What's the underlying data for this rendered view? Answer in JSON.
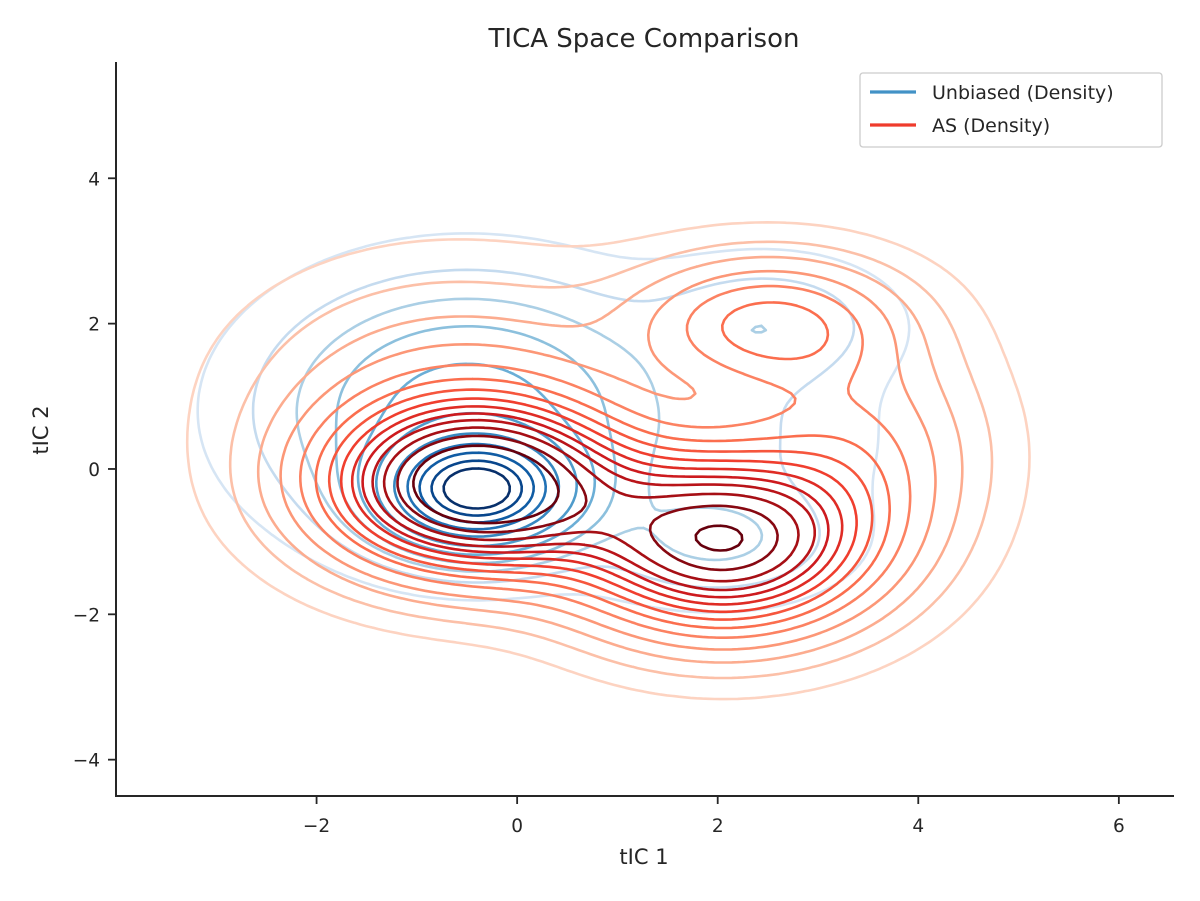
{
  "chart_data": {
    "type": "contour",
    "title": "TICA Space Comparison",
    "xlabel": "tIC 1",
    "ylabel": "tIC 2",
    "xlim": [
      -4.0,
      6.55
    ],
    "ylim": [
      -4.5,
      5.6
    ],
    "xticks": [
      -2,
      0,
      2,
      4,
      6
    ],
    "yticks": [
      -4,
      -2,
      0,
      2,
      4
    ],
    "tick_labels_x": [
      "−2",
      "0",
      "2",
      "4",
      "6"
    ],
    "tick_labels_y": [
      "−4",
      "−2",
      "0",
      "2",
      "4"
    ],
    "grid": false,
    "legend_position": "top-right",
    "series": [
      {
        "name": "Unbiased (Density)",
        "color": "#4292c6",
        "colormap": "Blues",
        "components": [
          {
            "x": -0.4,
            "y": -0.3,
            "sx": 0.55,
            "sy": 0.45,
            "w": 1.0
          },
          {
            "x": -0.5,
            "y": 0.8,
            "sx": 1.1,
            "sy": 1.0,
            "w": 0.22
          },
          {
            "x": 2.5,
            "y": 2.0,
            "sx": 0.75,
            "sy": 0.55,
            "w": 0.06
          },
          {
            "x": 2.0,
            "y": -1.0,
            "sx": 0.75,
            "sy": 0.5,
            "w": 0.07
          },
          {
            "x": 2.3,
            "y": 0.4,
            "sx": 0.9,
            "sy": 0.8,
            "w": 0.03
          }
        ],
        "levels": [
          0.01,
          0.03,
          0.06,
          0.1,
          0.16,
          0.25,
          0.38,
          0.5,
          0.62,
          0.74,
          0.85
        ]
      },
      {
        "name": "AS (Density)",
        "color": "#ef3b2c",
        "colormap": "Reds",
        "components": [
          {
            "x": -0.4,
            "y": -0.25,
            "sx": 0.95,
            "sy": 0.75,
            "w": 1.0
          },
          {
            "x": 2.05,
            "y": -1.0,
            "sx": 0.95,
            "sy": 0.8,
            "w": 0.85
          },
          {
            "x": 2.5,
            "y": 2.0,
            "sx": 0.85,
            "sy": 0.6,
            "w": 0.3
          },
          {
            "x": -0.6,
            "y": 1.0,
            "sx": 1.3,
            "sy": 1.1,
            "w": 0.15
          },
          {
            "x": 3.4,
            "y": 0.3,
            "sx": 0.8,
            "sy": 1.0,
            "w": 0.2
          }
        ],
        "levels": [
          0.02,
          0.05,
          0.09,
          0.14,
          0.2,
          0.26,
          0.32,
          0.38,
          0.44,
          0.5,
          0.56,
          0.63,
          0.71,
          0.8
        ]
      }
    ]
  }
}
